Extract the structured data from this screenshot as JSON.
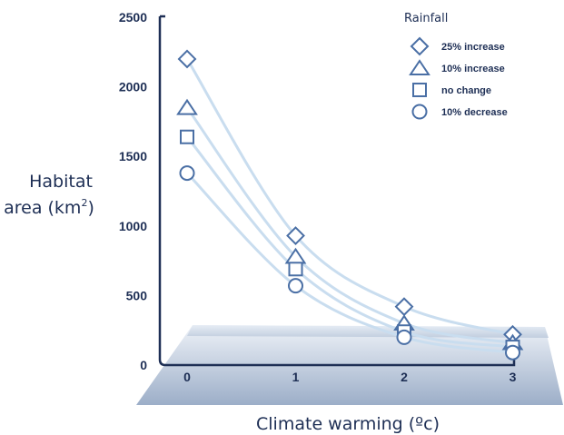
{
  "chart_data": {
    "type": "line",
    "x": [
      0,
      1,
      2,
      3
    ],
    "xlabel": "Climate warming (ºc)",
    "ylabel_line1": "Habitat",
    "ylabel_line2": "area (km",
    "ylabel_sup": "2",
    "ylabel_close": ")",
    "ylim": [
      0,
      2500
    ],
    "yticks": [
      "0",
      "500",
      "1000",
      "1500",
      "2000",
      "2500"
    ],
    "xticks": [
      "0",
      "1",
      "2",
      "3"
    ],
    "legend_title": "Rainfall",
    "legend_position": "top-right",
    "grid": false,
    "series": [
      {
        "name": "25% increase",
        "marker": "diamond",
        "values": [
          2200,
          930,
          420,
          220
        ]
      },
      {
        "name": "10% increase",
        "marker": "triangle",
        "values": [
          1850,
          780,
          300,
          160
        ]
      },
      {
        "name": "no change",
        "marker": "square",
        "values": [
          1640,
          690,
          240,
          130
        ]
      },
      {
        "name": "10% decrease",
        "marker": "circle",
        "values": [
          1380,
          570,
          200,
          90
        ]
      }
    ],
    "colors": {
      "marker_stroke": "#4a6fa5",
      "line": "#c9ddef",
      "text": "#1e2f55",
      "floor_top": "#e8eef6",
      "floor_bottom": "#9fb0c8"
    }
  }
}
